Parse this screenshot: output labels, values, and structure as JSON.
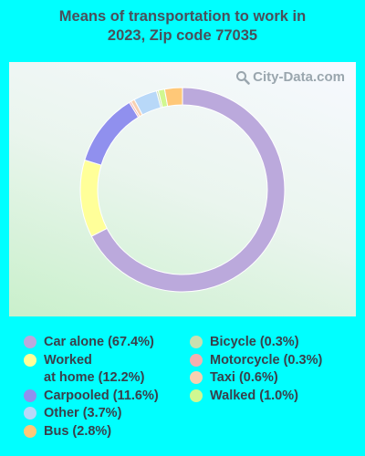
{
  "title_line1": "Means of transportation to work in",
  "title_line2": "2023, Zip code 77035",
  "watermark": {
    "text": "City-Data.com",
    "icon": "magnifier-icon"
  },
  "chart_data": {
    "type": "pie",
    "donut": true,
    "title": "Means of transportation to work in 2023, Zip code 77035",
    "legend_position": "bottom",
    "slices": [
      {
        "label": "Car alone (67.4%)",
        "name": "Car alone",
        "value": 67.4,
        "color": "#bba9dc"
      },
      {
        "label": "Worked at home (12.2%)",
        "label_lines": [
          "Worked",
          "at home (12.2%)"
        ],
        "name": "Worked at home",
        "value": 12.2,
        "color": "#ffff99"
      },
      {
        "label": "Carpooled (11.6%)",
        "name": "Carpooled",
        "value": 11.6,
        "color": "#9090ee"
      },
      {
        "label": "Motorcycle (0.3%)",
        "name": "Motorcycle",
        "value": 0.3,
        "color": "#f3b0b0"
      },
      {
        "label": "Taxi (0.6%)",
        "name": "Taxi",
        "value": 0.6,
        "color": "#f7d0b0"
      },
      {
        "label": "Other (3.7%)",
        "name": "Other",
        "value": 3.7,
        "color": "#b8d8f8"
      },
      {
        "label": "Bicycle (0.3%)",
        "name": "Bicycle",
        "value": 0.3,
        "color": "#c8e0b0"
      },
      {
        "label": "Walked (1.0%)",
        "name": "Walked",
        "value": 1.0,
        "color": "#d0f890"
      },
      {
        "label": "Bus (2.8%)",
        "name": "Bus",
        "value": 2.8,
        "color": "#ffc878"
      }
    ],
    "legend_order": [
      "Car alone",
      "Worked at home",
      "Carpooled",
      "Other",
      "Bus",
      "Bicycle",
      "Motorcycle",
      "Taxi",
      "Walked"
    ]
  }
}
